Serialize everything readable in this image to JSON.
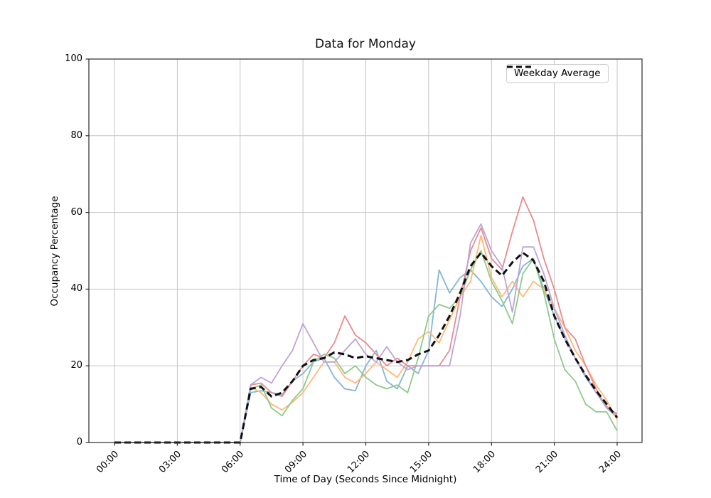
{
  "title": "Data for Monday",
  "axes": {
    "xlabel": "Time of Day (Seconds Since Midnight)",
    "ylabel": "Occupancy Percentage",
    "x_tick_labels": [
      "00:00",
      "03:00",
      "06:00",
      "09:00",
      "12:00",
      "15:00",
      "18:00",
      "21:00",
      "24:00"
    ],
    "x_tick_hours": [
      0,
      3,
      6,
      9,
      12,
      15,
      18,
      21,
      24
    ],
    "y_tick_labels": [
      "0",
      "20",
      "40",
      "60",
      "80",
      "100"
    ],
    "y_tick_values": [
      0,
      20,
      40,
      60,
      80,
      100
    ]
  },
  "legend": {
    "position": "upper right",
    "items": [
      {
        "label": "Weekday Average",
        "line_style": "dashed",
        "color": "#111111"
      }
    ]
  },
  "colors": {
    "grid": "#c4c4c4",
    "spine": "#2a2a2a",
    "background": "#ffffff"
  },
  "chart_data": {
    "type": "line",
    "title": "Data for Monday",
    "xlabel": "Time of Day (Seconds Since Midnight)",
    "ylabel": "Occupancy Percentage",
    "xlim_hours": [
      0,
      24
    ],
    "ylim": [
      0,
      100
    ],
    "grid": true,
    "legend_position": "upper right",
    "x_hours": [
      0,
      0.5,
      1,
      1.5,
      2,
      2.5,
      3,
      3.5,
      4,
      4.5,
      5,
      5.5,
      6,
      6.5,
      7,
      7.5,
      8,
      8.5,
      9,
      9.5,
      10,
      10.5,
      11,
      11.5,
      12,
      12.5,
      13,
      13.5,
      14,
      14.5,
      15,
      15.5,
      16,
      16.5,
      17,
      17.5,
      18,
      18.5,
      19,
      19.5,
      20,
      20.5,
      21,
      21.5,
      22,
      22.5,
      23,
      23.5,
      24
    ],
    "series": [
      {
        "name": "day-line-blue",
        "color": "#85b5d7",
        "style": "solid",
        "width": 1.8,
        "values": [
          0,
          0,
          0,
          0,
          0,
          0,
          0,
          0,
          0,
          0,
          0,
          0,
          0,
          13,
          13.5,
          13,
          12.5,
          16,
          18,
          21,
          22,
          17,
          14,
          13.5,
          20,
          24,
          16,
          14,
          20,
          18,
          24,
          45,
          39,
          43,
          45,
          42,
          38,
          35.5,
          40,
          46,
          48,
          40,
          33,
          27,
          22,
          17,
          13,
          9,
          6.5
        ]
      },
      {
        "name": "day-line-orange",
        "color": "#ffb878",
        "style": "solid",
        "width": 1.8,
        "values": [
          0,
          0,
          0,
          0,
          0,
          0,
          0,
          0,
          0,
          0,
          0,
          0,
          0,
          14.5,
          13,
          10,
          8.5,
          10.5,
          13,
          17,
          21,
          21,
          17,
          15.5,
          18,
          21,
          19,
          17,
          21,
          27,
          29,
          26,
          32,
          38,
          42,
          54,
          43,
          38,
          42,
          38,
          42,
          40,
          35,
          30,
          24,
          20,
          15,
          11,
          6
        ]
      },
      {
        "name": "day-line-green",
        "color": "#8ccb8c",
        "style": "solid",
        "width": 1.8,
        "values": [
          0,
          0,
          0,
          0,
          0,
          0,
          0,
          0,
          0,
          0,
          0,
          0,
          0,
          14,
          15,
          9,
          7,
          11,
          14,
          21,
          23,
          22,
          18,
          20,
          17,
          15,
          14,
          15,
          13,
          22,
          33,
          36,
          35,
          38,
          45,
          50,
          42,
          37,
          31,
          44,
          48,
          39,
          27,
          19,
          16,
          10,
          8,
          8,
          3
        ]
      },
      {
        "name": "day-line-red",
        "color": "#e98a8b",
        "style": "solid",
        "width": 1.8,
        "values": [
          0,
          0,
          0,
          0,
          0,
          0,
          0,
          0,
          0,
          0,
          0,
          0,
          0,
          15,
          15.5,
          13,
          12,
          16,
          20,
          23,
          22,
          26,
          33,
          28,
          26,
          23,
          20,
          22,
          20,
          20,
          20,
          20,
          24,
          38,
          50,
          56,
          48,
          45,
          55,
          64,
          58,
          48,
          40,
          30,
          27,
          20,
          14,
          9,
          7.5
        ]
      },
      {
        "name": "day-line-purple",
        "color": "#bda4d8",
        "style": "solid",
        "width": 1.8,
        "values": [
          0,
          0,
          0,
          0,
          0,
          0,
          0,
          0,
          0,
          0,
          0,
          0,
          0,
          15,
          17,
          15.5,
          20,
          24,
          31,
          26,
          21,
          21,
          24,
          27,
          23,
          21,
          25,
          21,
          19,
          20,
          20,
          20,
          20,
          33,
          52,
          57,
          50,
          46,
          34,
          51,
          51,
          44,
          35,
          28,
          22,
          17.5,
          13,
          9.5,
          7
        ]
      },
      {
        "name": "Weekday Average",
        "color": "#111111",
        "style": "dashed",
        "width": 3,
        "values": [
          0,
          0,
          0,
          0,
          0,
          0,
          0,
          0,
          0,
          0,
          0,
          0,
          0,
          14,
          14.5,
          12,
          13,
          16,
          20,
          21.5,
          22,
          23.5,
          23,
          22,
          22.5,
          22,
          21.5,
          21,
          21.5,
          23,
          24,
          28,
          33,
          39,
          46,
          49.5,
          46,
          43.5,
          47,
          49.5,
          47.5,
          42,
          33,
          27,
          22,
          17.5,
          13.5,
          10,
          6.5
        ]
      }
    ]
  }
}
